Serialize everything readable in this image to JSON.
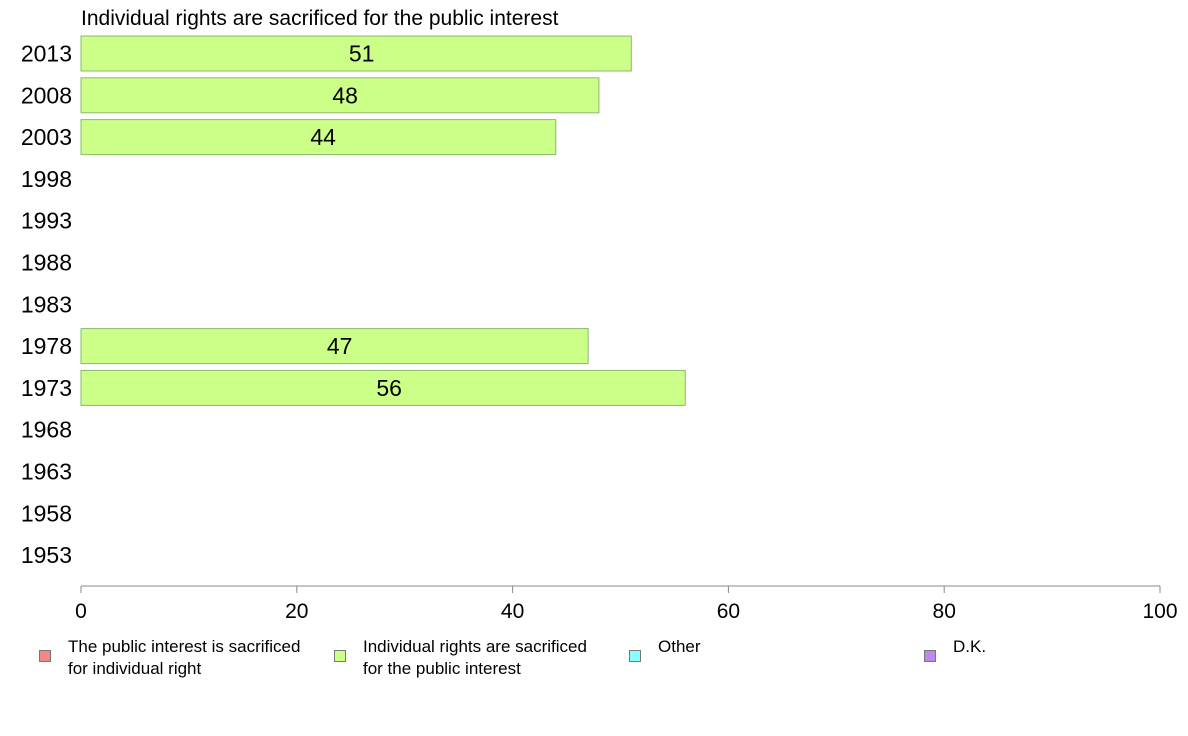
{
  "chart_data": {
    "type": "bar",
    "orientation": "horizontal",
    "title": "Individual rights are sacrificed for the public interest",
    "categories": [
      "2013",
      "2008",
      "2003",
      "1998",
      "1993",
      "1988",
      "1983",
      "1978",
      "1973",
      "1968",
      "1963",
      "1958",
      "1953"
    ],
    "series": [
      {
        "name": "Individual rights are sacrificed for the public interest",
        "color": "#ccff88",
        "values": [
          51,
          48,
          44,
          null,
          null,
          null,
          null,
          47,
          56,
          null,
          null,
          null,
          null
        ]
      }
    ],
    "xlim": [
      0,
      100
    ],
    "xticks": [
      "0",
      "20",
      "40",
      "60",
      "80",
      "100"
    ],
    "grid": false,
    "legend_position": "bottom"
  },
  "legend": [
    {
      "label": "The public interest is sacrificed\nfor individual right",
      "color": "#f08888"
    },
    {
      "label": "Individual rights are sacrificed\nfor the public interest",
      "color": "#ccff88"
    },
    {
      "label": "Other",
      "color": "#88ffff"
    },
    {
      "label": "D.K.",
      "color": "#bb88ee"
    }
  ]
}
